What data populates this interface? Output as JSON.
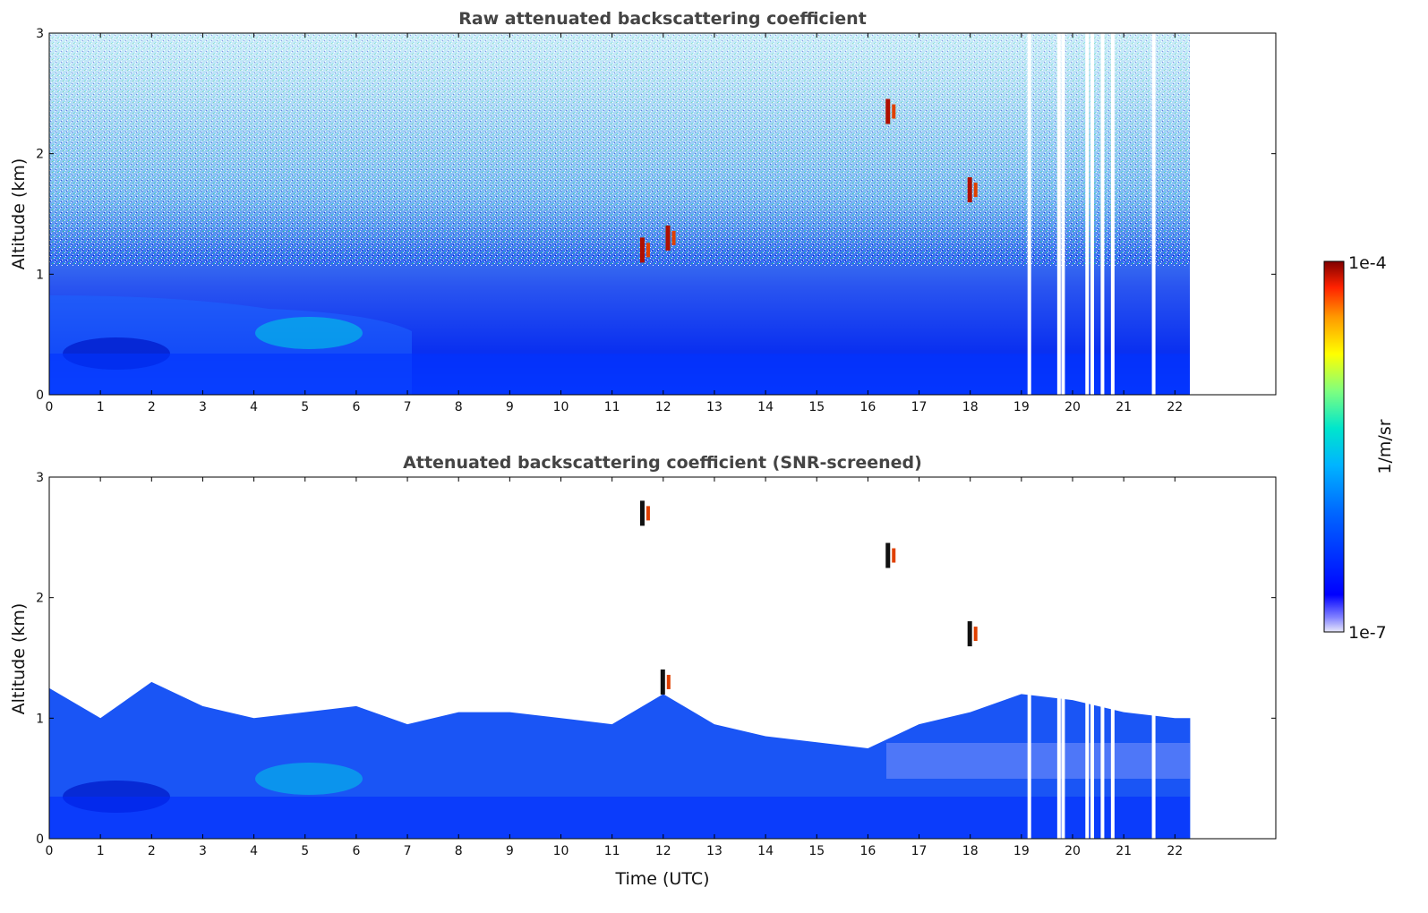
{
  "chart_data": [
    {
      "type": "heatmap",
      "title": "Raw attenuated backscattering coefficient",
      "xlabel": "",
      "ylabel": "Altitude (km)",
      "xlim": [
        0,
        24
      ],
      "ylim": [
        0,
        3
      ],
      "x_ticks": [
        "0",
        "1",
        "2",
        "3",
        "4",
        "5",
        "6",
        "7",
        "8",
        "9",
        "10",
        "11",
        "12",
        "13",
        "14",
        "15",
        "16",
        "17",
        "18",
        "19",
        "20",
        "21",
        "22"
      ],
      "y_ticks": [
        "0",
        "1",
        "2",
        "3"
      ],
      "data_end_hour": 22.3,
      "screened": false,
      "features": [
        {
          "kind": "boundary_layer",
          "t0": 0,
          "t1": 7.2,
          "alt_top_km": 0.8
        },
        {
          "kind": "aerosol_layer",
          "t0": 4.2,
          "t1": 6.3,
          "alt_km": 0.55
        },
        {
          "kind": "cloud",
          "t": 11.6,
          "alt_km": 1.2
        },
        {
          "kind": "cloud",
          "t": 12.1,
          "alt_km": 1.3
        },
        {
          "kind": "cloud",
          "t": 16.4,
          "alt_km": 2.35
        },
        {
          "kind": "cloud",
          "t": 18.0,
          "alt_km": 1.7
        }
      ],
      "missing_data_hours": [
        19.12,
        19.7,
        19.78,
        20.25,
        20.35,
        20.55,
        20.75,
        21.55
      ]
    },
    {
      "type": "heatmap",
      "title": "Attenuated backscattering coefficient (SNR-screened)",
      "xlabel": "Time (UTC)",
      "ylabel": "Altitude (km)",
      "xlim": [
        0,
        24
      ],
      "ylim": [
        0,
        3
      ],
      "x_ticks": [
        "0",
        "1",
        "2",
        "3",
        "4",
        "5",
        "6",
        "7",
        "8",
        "9",
        "10",
        "11",
        "12",
        "13",
        "14",
        "15",
        "16",
        "17",
        "18",
        "19",
        "20",
        "21",
        "22"
      ],
      "y_ticks": [
        "0",
        "1",
        "2",
        "3"
      ],
      "data_end_hour": 22.3,
      "screened": true,
      "boundary_layer_top_km": [
        [
          0,
          1.25
        ],
        [
          1,
          1.0
        ],
        [
          2,
          1.3
        ],
        [
          3,
          1.1
        ],
        [
          4,
          1.0
        ],
        [
          5,
          1.05
        ],
        [
          6,
          1.1
        ],
        [
          7,
          0.95
        ],
        [
          8,
          1.05
        ],
        [
          9,
          1.05
        ],
        [
          10,
          1.0
        ],
        [
          11,
          0.95
        ],
        [
          12,
          1.2
        ],
        [
          13,
          0.95
        ],
        [
          14,
          0.85
        ],
        [
          15,
          0.8
        ],
        [
          16,
          0.75
        ],
        [
          17,
          0.95
        ],
        [
          18,
          1.05
        ],
        [
          19,
          1.2
        ],
        [
          20,
          1.15
        ],
        [
          21,
          1.05
        ],
        [
          22,
          1.0
        ]
      ],
      "features": [
        {
          "kind": "cloud",
          "t": 11.6,
          "alt_km": 2.7
        },
        {
          "kind": "cloud",
          "t": 16.4,
          "alt_km": 2.35
        },
        {
          "kind": "cloud",
          "t": 18.0,
          "alt_km": 1.7
        },
        {
          "kind": "cloud",
          "t": 12.0,
          "alt_km": 1.3
        }
      ],
      "missing_data_hours": [
        19.12,
        19.7,
        19.78,
        20.25,
        20.35,
        20.55,
        20.75,
        21.55
      ]
    }
  ],
  "colorbar": {
    "label": "1/m/sr",
    "max_label": "1e-4",
    "min_label": "1e-7",
    "colors": [
      "#e8e8fa",
      "#4040ff",
      "#0000ff",
      "#0066ff",
      "#00b4ff",
      "#00e6cc",
      "#7fff7f",
      "#ffff00",
      "#ff9900",
      "#ff2200",
      "#800000"
    ]
  }
}
